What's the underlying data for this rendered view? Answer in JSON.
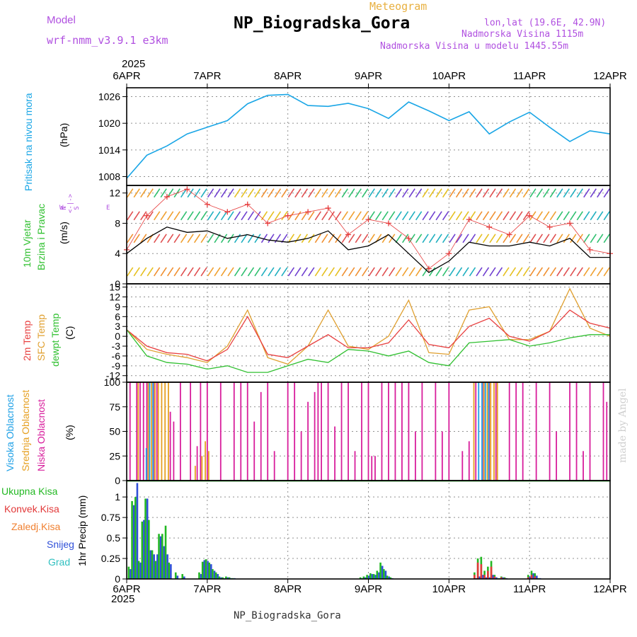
{
  "header": {
    "product": "Meteogram",
    "station": "NP_Biogradska_Gora",
    "model_label": "Model",
    "model_value": "wrf-nmm_v3.9.1  e3km",
    "lonlat": "lon,lat (19.6E, 42.9N)",
    "elevation": "Nadmorska Visina 1115m",
    "model_elevation": "Nadmorska Visina u modelu 1445.55m",
    "footer_station": "NP_Biogradska_Gora",
    "credit": "made by Angel"
  },
  "colors": {
    "pressure": "#1aa6e6",
    "wind_black": "#000000",
    "wind_gust": "#e63c3c",
    "t2m": "#e84040",
    "tsfc": "#e0a030",
    "dewpt": "#30c030",
    "cloud_high": "#1ea0e6",
    "cloud_mid": "#e6a022",
    "cloud_low": "#d81e9c",
    "precip_total": "#22b822",
    "precip_conv": "#e23838",
    "precip_frz": "#f08030",
    "precip_snow": "#3050d8",
    "precip_grad": "#30c0c0",
    "grid": "#909090",
    "label_purple": "#b050e0",
    "label_orange": "#e8b040"
  },
  "chart_data": [
    {
      "type": "line",
      "name": "pressure",
      "ylabel_side": "Pritisak na nivou mora",
      "ylabel_unit": "(hPa)",
      "x_hours": [
        0,
        6,
        12,
        18,
        24,
        30,
        36,
        42,
        48,
        54,
        60,
        66,
        72,
        78,
        84,
        90,
        96,
        102,
        108,
        114,
        120,
        126,
        132,
        138,
        144
      ],
      "values": [
        1007.6,
        1012.8,
        1014.9,
        1017.6,
        1019.1,
        1020.6,
        1024.4,
        1026.3,
        1026.5,
        1024.0,
        1023.8,
        1024.5,
        1023.3,
        1021.1,
        1024.8,
        1022.8,
        1020.6,
        1022.6,
        1017.6,
        1020.3,
        1022.5,
        1019.1,
        1015.9,
        1018.3,
        1017.6
      ],
      "ylim": [
        1006,
        1028
      ],
      "yticks": [
        "1026",
        "1020",
        "1014",
        "1008"
      ]
    },
    {
      "type": "line",
      "name": "wind",
      "ylabel_side": "10m Vjetar",
      "ylabel_side2": "Brzina i Pravac",
      "ylabel_unit": "(m/s)",
      "compass": "N\n<-|->\nS",
      "compass_w": "W",
      "compass_e": "E",
      "x_hours": [
        0,
        6,
        12,
        18,
        24,
        30,
        36,
        42,
        48,
        54,
        60,
        66,
        72,
        78,
        84,
        90,
        96,
        102,
        108,
        114,
        120,
        126,
        132,
        138,
        144
      ],
      "speed": [
        4.0,
        6.0,
        7.5,
        6.8,
        7.0,
        6.0,
        6.5,
        5.8,
        5.5,
        6.0,
        7.0,
        4.5,
        5.0,
        6.5,
        4.0,
        1.5,
        3.0,
        5.5,
        5.0,
        5.0,
        5.5,
        5.0,
        6.0,
        3.5,
        3.5
      ],
      "gust": [
        4.5,
        9.0,
        11.5,
        12.5,
        10.5,
        9.5,
        10.5,
        8.0,
        9.0,
        9.5,
        10.0,
        6.5,
        8.5,
        8.0,
        6.0,
        2.0,
        4.0,
        8.5,
        7.5,
        6.5,
        9.0,
        7.5,
        8.0,
        4.5,
        4.0
      ],
      "ylim": [
        0,
        13
      ],
      "yticks": [
        "12",
        "8",
        "4",
        "0"
      ]
    },
    {
      "type": "line",
      "name": "temperature",
      "ylabel_side": "2m Temp",
      "ylabel_side2": "SFC Temp",
      "ylabel_side3": "dewpt Temp",
      "ylabel_unit": "(C)",
      "x_hours": [
        0,
        6,
        12,
        18,
        24,
        30,
        36,
        42,
        48,
        54,
        60,
        66,
        72,
        78,
        84,
        90,
        96,
        102,
        108,
        114,
        120,
        126,
        132,
        138,
        144
      ],
      "t2m": [
        2.0,
        -3.0,
        -5.0,
        -5.5,
        -7.5,
        -4.0,
        6.0,
        -5.5,
        -6.5,
        -3.0,
        0.5,
        -3.5,
        -3.5,
        -2.0,
        5.0,
        -2.5,
        -3.5,
        3.0,
        5.5,
        0.0,
        -1.5,
        1.5,
        8.0,
        4.0,
        2.5
      ],
      "tsfc": [
        2.0,
        -4.0,
        -5.5,
        -6.5,
        -8.0,
        -3.0,
        8.0,
        -6.5,
        -8.5,
        -3.0,
        8.0,
        -3.0,
        -4.0,
        0.0,
        11.0,
        -5.0,
        -5.5,
        8.0,
        9.0,
        -1.0,
        -1.0,
        1.5,
        14.5,
        2.5,
        0.0
      ],
      "dewpt": [
        2.0,
        -6.0,
        -8.0,
        -8.5,
        -10.0,
        -9.0,
        -11.0,
        -11.0,
        -9.0,
        -7.0,
        -8.0,
        -4.0,
        -4.5,
        -6.0,
        -4.5,
        -8.0,
        -9.0,
        -2.0,
        -1.5,
        -1.0,
        -3.0,
        -2.0,
        -0.5,
        0.5,
        0.5
      ],
      "ylim": [
        -14,
        16
      ],
      "yticks": [
        "15",
        "12",
        "9",
        "6",
        "3",
        "0",
        "-3",
        "-6",
        "-9",
        "-12"
      ]
    },
    {
      "type": "bar",
      "name": "cloud",
      "ylabel_side": "Visoka Oblacnost",
      "ylabel_side2": "Srednja Oblacnost",
      "ylabel_side3": "Niska Oblacnost",
      "ylabel_unit": "(%)",
      "ylim": [
        0,
        100
      ],
      "yticks": [
        "100",
        "75",
        "50",
        "25",
        "0"
      ],
      "series": [
        {
          "name": "low",
          "x_hours": [
            1,
            3,
            4,
            5,
            6,
            8,
            9,
            13,
            14,
            16,
            19,
            21,
            22,
            24,
            28,
            32,
            34,
            36,
            38,
            40,
            42,
            44,
            48,
            50,
            52,
            54,
            56,
            57,
            58,
            60,
            62,
            64,
            66,
            68,
            70,
            72,
            73,
            74,
            76,
            78,
            80,
            82,
            84,
            86,
            88,
            92,
            94,
            96,
            100,
            102,
            104,
            106,
            108,
            110,
            114,
            116,
            118,
            122,
            126,
            128,
            132,
            134,
            136,
            138,
            142,
            143
          ],
          "values": [
            100,
            100,
            100,
            100,
            100,
            100,
            100,
            70,
            60,
            100,
            100,
            35,
            100,
            100,
            100,
            100,
            100,
            100,
            60,
            90,
            100,
            30,
            100,
            100,
            50,
            80,
            90,
            100,
            100,
            100,
            55,
            100,
            100,
            30,
            100,
            100,
            25,
            25,
            100,
            100,
            100,
            100,
            100,
            50,
            100,
            100,
            50,
            100,
            30,
            40,
            100,
            100,
            100,
            100,
            100,
            100,
            100,
            100,
            100,
            50,
            100,
            100,
            30,
            100,
            100,
            80
          ]
        },
        {
          "name": "mid",
          "x_hours": [
            3,
            6,
            7,
            8,
            9,
            10,
            11,
            12,
            20,
            22,
            23,
            24,
            103,
            106,
            107,
            108,
            109,
            110
          ],
          "values": [
            100,
            100,
            100,
            100,
            100,
            100,
            100,
            100,
            15,
            25,
            40,
            30,
            100,
            100,
            100,
            100,
            100,
            100
          ]
        },
        {
          "name": "high",
          "x_hours": [
            5,
            6,
            7,
            104,
            105,
            106,
            107
          ],
          "values": [
            33,
            100,
            100,
            100,
            100,
            100,
            100
          ]
        }
      ]
    },
    {
      "type": "bar",
      "name": "precipitation",
      "ylabel": "1hr Precip (mm)",
      "legend": [
        "Ukupna Kisa",
        "Konvek.Kisa",
        "Zaledj.Kisa",
        "Snijeg",
        "Grad"
      ],
      "ylim": [
        0,
        1.2
      ],
      "yticks": [
        "1",
        "0.75",
        "0.5",
        "0.25",
        "0"
      ],
      "x_hours": [
        1,
        2,
        3,
        4,
        5,
        6,
        7,
        8,
        9,
        10,
        11,
        12,
        13,
        15,
        17,
        22,
        23,
        24,
        25,
        26,
        27,
        28,
        29,
        30,
        31,
        32,
        70,
        71,
        72,
        73,
        74,
        75,
        76,
        77,
        78,
        79,
        104,
        105,
        106,
        107,
        108,
        109,
        110,
        111,
        112,
        113,
        120,
        121,
        122,
        123
      ],
      "total": [
        0.15,
        0.95,
        1.0,
        0.22,
        0.7,
        0.98,
        0.72,
        0.35,
        0.22,
        0.55,
        0.55,
        0.65,
        0.2,
        0.08,
        0.06,
        0.08,
        0.21,
        0.24,
        0.2,
        0.12,
        0.08,
        0.03,
        0.02,
        0.03,
        0.02,
        0.01,
        0.02,
        0.03,
        0.05,
        0.07,
        0.06,
        0.1,
        0.2,
        0.12,
        0.04,
        0.02,
        0.08,
        0.25,
        0.27,
        0.1,
        0.15,
        0.22,
        0.05,
        0.01,
        0.03,
        0.02,
        0.05,
        0.1,
        0.07,
        0.01
      ],
      "snow": [
        0.12,
        0.9,
        1.17,
        0.2,
        0.72,
        0.98,
        0.35,
        0.3,
        0.3,
        0.52,
        0.4,
        0.3,
        0.18,
        0.04,
        0.03,
        0.06,
        0.23,
        0.22,
        0.18,
        0.1,
        0.06,
        0.02,
        0.01,
        0.02,
        0.01,
        0.01,
        0.01,
        0.02,
        0.04,
        0.06,
        0.05,
        0.08,
        0.16,
        0.1,
        0.03,
        0.01,
        0.01,
        0.03,
        0.05,
        0.02,
        0.02,
        0.05,
        0.02,
        0.01,
        0.02,
        0.01,
        0.03,
        0.07,
        0.04,
        0.01
      ],
      "conv": [
        0,
        0,
        0,
        0,
        0,
        0,
        0,
        0,
        0,
        0,
        0,
        0,
        0,
        0,
        0,
        0,
        0,
        0,
        0,
        0,
        0,
        0,
        0,
        0,
        0,
        0,
        0,
        0,
        0,
        0,
        0,
        0,
        0,
        0,
        0,
        0,
        0.05,
        0.2,
        0.18,
        0.05,
        0.1,
        0.15,
        0.03,
        0,
        0.02,
        0.01,
        0.02,
        0.05,
        0.03,
        0
      ]
    }
  ],
  "x_axis": {
    "top_year": "2025",
    "bottom_year": "2025",
    "ticks": [
      "6APR",
      "7APR",
      "8APR",
      "9APR",
      "10APR",
      "11APR",
      "12APR"
    ],
    "tick_hours": [
      0,
      24,
      48,
      72,
      96,
      120,
      144
    ]
  }
}
